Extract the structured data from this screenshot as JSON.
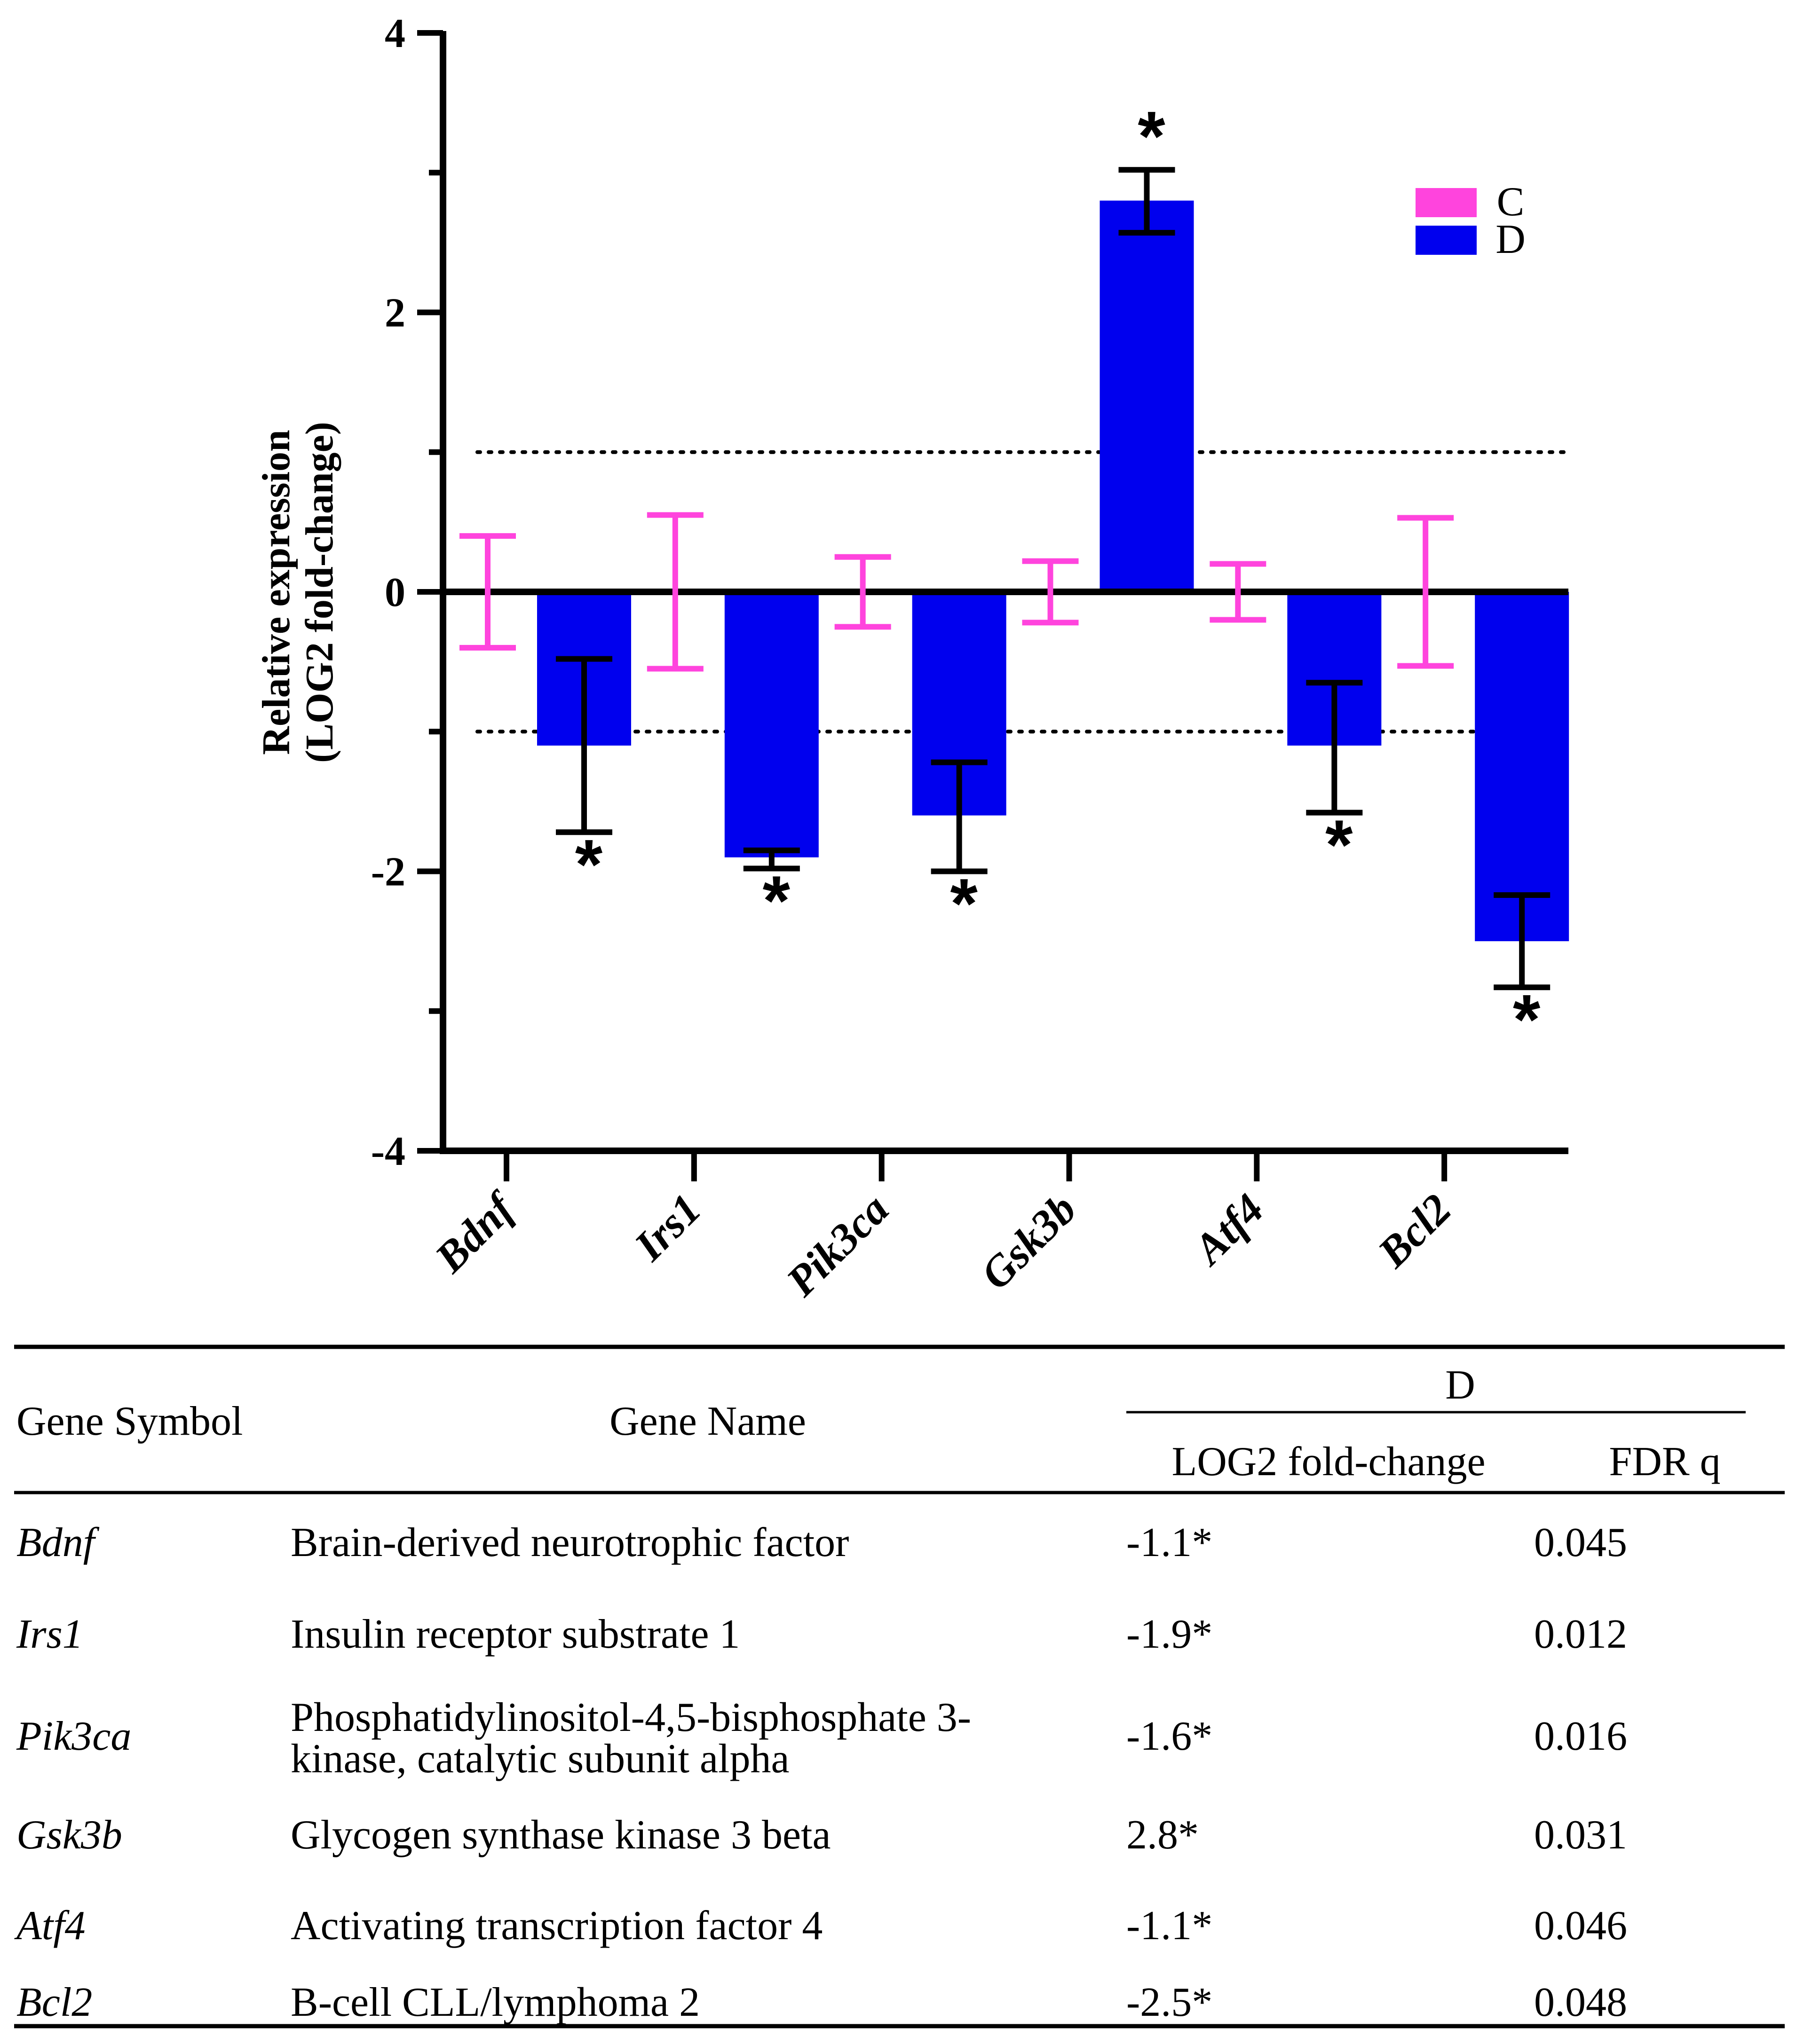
{
  "chart_data": {
    "type": "bar",
    "title": "",
    "xlabel": "",
    "ylabel_line1": "Relative expression",
    "ylabel_line2": "(LOG2 fold-change)",
    "ylim": [
      -4,
      4
    ],
    "yticks": [
      "4",
      "2",
      "0",
      "-2",
      "-4"
    ],
    "ytick_values": [
      4,
      2,
      0,
      -2,
      -4
    ],
    "reference_lines": [
      1,
      -1
    ],
    "categories": [
      "Bdnf",
      "Irs1",
      "Pik3ca",
      "Gsk3b",
      "Atf4",
      "Bcl2"
    ],
    "legend_position": "top-right",
    "series": [
      {
        "name": "C",
        "color": "#ff44dd",
        "values": [
          0,
          0,
          0,
          0,
          0,
          0
        ],
        "error_low": [
          -0.4,
          -0.55,
          -0.25,
          -0.22,
          -0.2,
          -0.53
        ],
        "error_high": [
          0.4,
          0.55,
          0.25,
          0.22,
          0.2,
          0.53
        ]
      },
      {
        "name": "D",
        "color": "#0000ee",
        "values": [
          -1.1,
          -1.9,
          -1.6,
          2.8,
          -1.1,
          -2.5
        ],
        "error_low": [
          -1.72,
          -1.98,
          -2.0,
          2.57,
          -1.58,
          -2.83
        ],
        "error_high": [
          -0.48,
          -1.85,
          -1.22,
          3.02,
          -0.65,
          -2.17
        ],
        "significance": [
          "*",
          "*",
          "*",
          "*",
          "*",
          "*"
        ]
      }
    ]
  },
  "table": {
    "headers": {
      "gene_symbol": "Gene Symbol",
      "gene_name": "Gene Name",
      "group": "D",
      "log2": "LOG2 fold-change",
      "fdr": "FDR q"
    },
    "rows": [
      {
        "symbol": "Bdnf",
        "name_lines": [
          "Brain-derived neurotrophic factor"
        ],
        "log2": "-1.1*",
        "fdr": "0.045"
      },
      {
        "symbol": "Irs1",
        "name_lines": [
          "Insulin receptor substrate 1"
        ],
        "log2": "-1.9*",
        "fdr": "0.012"
      },
      {
        "symbol": "Pik3ca",
        "name_lines": [
          "Phosphatidylinositol-4,5-bisphosphate 3-",
          "kinase, catalytic subunit alpha"
        ],
        "log2": "-1.6*",
        "fdr": "0.016"
      },
      {
        "symbol": "Gsk3b",
        "name_lines": [
          "Glycogen synthase kinase 3 beta"
        ],
        "log2": "2.8*",
        "fdr": "0.031"
      },
      {
        "symbol": "Atf4",
        "name_lines": [
          "Activating transcription factor 4"
        ],
        "log2": "-1.1*",
        "fdr": "0.046"
      },
      {
        "symbol": "Bcl2",
        "name_lines": [
          "B-cell CLL/lymphoma 2"
        ],
        "log2": "-2.5*",
        "fdr": "0.048"
      }
    ]
  }
}
